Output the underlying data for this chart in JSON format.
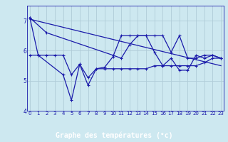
{
  "line1_x": [
    0,
    2,
    10,
    11,
    12,
    13,
    14,
    15,
    16,
    17,
    18,
    19,
    20,
    21,
    22,
    23
  ],
  "line1_y": [
    7.1,
    6.6,
    5.85,
    5.75,
    6.2,
    6.5,
    6.5,
    6.5,
    6.5,
    5.95,
    6.5,
    5.75,
    5.75,
    5.85,
    5.85,
    5.75
  ],
  "line2_x": [
    0,
    1,
    2,
    3,
    4,
    5,
    6,
    7,
    8,
    9,
    10,
    11,
    12,
    13,
    14,
    15,
    16,
    17,
    18,
    19,
    20,
    21,
    22,
    23
  ],
  "line2_y": [
    5.85,
    5.85,
    5.85,
    5.85,
    5.85,
    5.2,
    5.55,
    5.1,
    5.4,
    5.4,
    5.4,
    5.4,
    5.4,
    5.4,
    5.4,
    5.5,
    5.5,
    5.5,
    5.5,
    5.5,
    5.5,
    5.6,
    5.75,
    5.75
  ],
  "line3_x": [
    0,
    1,
    4,
    5,
    6,
    7,
    8,
    9,
    10,
    11,
    12,
    13,
    14,
    15,
    16,
    17,
    18,
    19,
    20,
    21,
    22,
    23
  ],
  "line3_y": [
    7.1,
    5.85,
    5.2,
    4.35,
    5.55,
    4.85,
    5.4,
    5.45,
    5.8,
    6.5,
    6.5,
    6.5,
    6.5,
    5.95,
    5.5,
    5.75,
    5.35,
    5.35,
    5.85,
    5.75,
    5.85,
    5.75
  ],
  "trend_x": [
    0,
    23
  ],
  "trend_y": [
    7.05,
    5.5
  ],
  "xlabel": "Graphe des températures (°c)",
  "ylim": [
    4.0,
    7.5
  ],
  "xlim": [
    -0.3,
    23.3
  ],
  "yticks": [
    4,
    5,
    6,
    7
  ],
  "xticks": [
    0,
    1,
    2,
    3,
    4,
    5,
    6,
    7,
    8,
    9,
    10,
    11,
    12,
    13,
    14,
    15,
    16,
    17,
    18,
    19,
    20,
    21,
    22,
    23
  ],
  "bg_color": "#cde8f0",
  "grid_color": "#b0ccd8",
  "line_color": "#1a1aaa",
  "axis_bottom_color": "#2020cc",
  "line_width": 0.9,
  "marker_size": 3
}
